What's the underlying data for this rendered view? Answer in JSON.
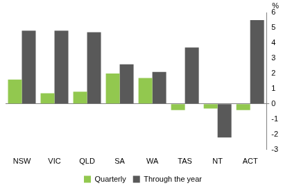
{
  "chart_data": {
    "type": "bar",
    "categories": [
      "NSW",
      "VIC",
      "QLD",
      "SA",
      "WA",
      "TAS",
      "NT",
      "ACT"
    ],
    "series": [
      {
        "name": "Quarterly",
        "color": "#92c84f",
        "values": [
          1.6,
          0.7,
          0.8,
          2.0,
          1.7,
          -0.4,
          -0.3,
          -0.4
        ]
      },
      {
        "name": "Through the year",
        "color": "#595959",
        "values": [
          4.8,
          4.8,
          4.7,
          2.6,
          2.1,
          3.7,
          -2.2,
          5.5
        ]
      }
    ],
    "ylabel": "%",
    "ylim": [
      -3,
      6
    ],
    "yticks": [
      -3,
      -2,
      -1,
      0,
      1,
      2,
      3,
      4,
      5,
      6
    ],
    "grid": false,
    "legend": "bottom"
  }
}
